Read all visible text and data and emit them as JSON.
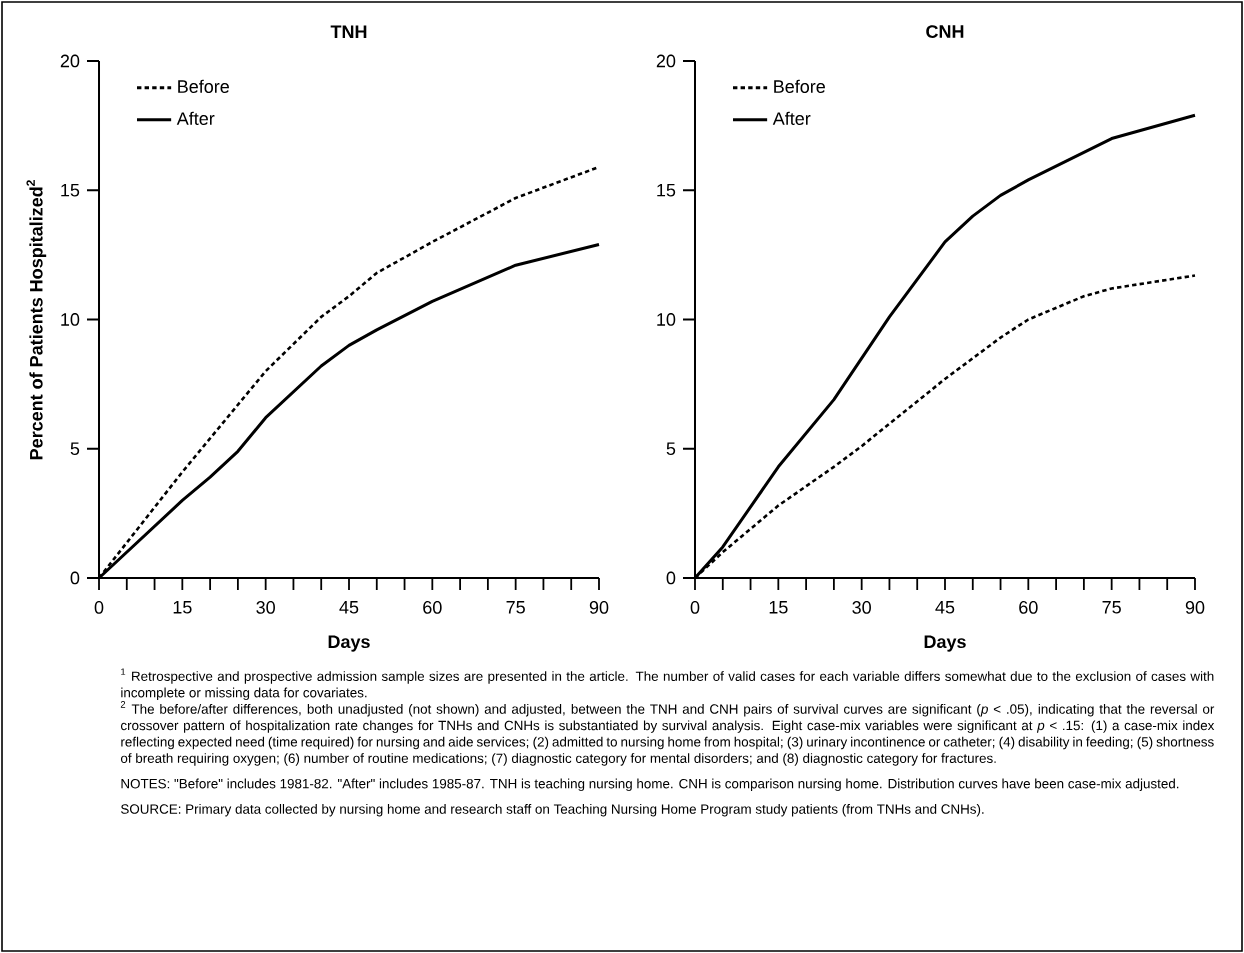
{
  "chart_data": [
    {
      "type": "line",
      "title": "TNH",
      "xlabel": "Days",
      "ylabel": "Percent of Patients Hospitalized$^{2}$",
      "xlim": [
        0,
        90
      ],
      "ylim": [
        0,
        20
      ],
      "xticks": [
        0,
        {
          "value": 5,
          "label": null
        },
        {
          "value": 10,
          "label": null
        },
        15,
        {
          "value": 20,
          "label": null
        },
        {
          "value": 25,
          "label": null
        },
        30,
        {
          "value": 35,
          "label": null
        },
        {
          "value": 40,
          "label": null
        },
        45,
        {
          "value": 50,
          "label": null
        },
        {
          "value": 55,
          "label": null
        },
        60,
        {
          "value": 65,
          "label": null
        },
        {
          "value": 70,
          "label": null
        },
        75,
        {
          "value": 80,
          "label": null
        },
        {
          "value": 85,
          "label": null
        },
        90
      ],
      "yticks": [
        0,
        5,
        10,
        15,
        20
      ],
      "grid": false,
      "legend": "top left",
      "series": [
        {
          "name": "Before",
          "color": "#000000",
          "line_style": "dashed",
          "x": [
            0,
            15,
            30,
            40,
            45,
            50,
            60,
            75,
            90
          ],
          "values": [
            0,
            4.1,
            8.0,
            10.1,
            10.9,
            11.8,
            13.0,
            14.7,
            15.9
          ]
        },
        {
          "name": "After",
          "color": "#000000",
          "line_style": "solid",
          "x": [
            0,
            15,
            20,
            25,
            30,
            40,
            45,
            50,
            60,
            75,
            90
          ],
          "values": [
            0,
            3.0,
            3.9,
            4.9,
            6.2,
            8.2,
            9.0,
            9.6,
            10.7,
            12.1,
            12.9
          ]
        }
      ],
      "annotations": [
        "$^{1}$ Retrospective and prospective admission sample sizes are presented in the article. The number of valid cases for each variable differs somewhat due to the exclusion of cases with incomplete or missing data for covariates.",
        "$^{2}$ The before/after differences, both unadjusted (not shown) and adjusted, between the TNH and CNH pairs of survival curves are significant (*p* < .05), indicating that the reversal or crossover pattern of hospitalization rate changes for TNHs and CNHs is substantiated by survival analysis. Eight case-mix variables were significant at *p* < .15: (1) a case-mix index reflecting expected need (time required) for nursing and aide services; (2) admitted to nursing home from hospital; (3) urinary incontinence or catheter; (4) disability in feeding; (5) shortness of breath requiring oxygen; (6) number of routine medications; (7) diagnostic category for mental disorders; and (8) diagnostic category for fractures.",
        "NOTES: \"Before\" includes 1981-82. \"After\" includes 1985-87. TNH is teaching nursing home. CNH is comparison nursing home. Distribution curves have been case-mix adjusted.",
        "SOURCE: Primary data collected by nursing home and research staff on Teaching Nursing Home Program study patients (from TNHs and CNHs)."
      ]
    },
    {
      "type": "line",
      "title": "CNH",
      "xlabel": "Days",
      "xlim": [
        0,
        90
      ],
      "ylim": [
        0,
        20
      ],
      "xticks": [
        0,
        {
          "value": 5,
          "label": null
        },
        {
          "value": 10,
          "label": null
        },
        15,
        {
          "value": 20,
          "label": null
        },
        {
          "value": 25,
          "label": null
        },
        30,
        {
          "value": 35,
          "label": null
        },
        {
          "value": 40,
          "label": null
        },
        45,
        {
          "value": 50,
          "label": null
        },
        {
          "value": 55,
          "label": null
        },
        60,
        {
          "value": 65,
          "label": null
        },
        {
          "value": 70,
          "label": null
        },
        75,
        {
          "value": 80,
          "label": null
        },
        {
          "value": 85,
          "label": null
        },
        90
      ],
      "yticks": [
        0,
        5,
        10,
        15,
        20
      ],
      "grid": false,
      "legend": "top left",
      "series": [
        {
          "name": "Before",
          "color": "#000000",
          "line_style": "dashed",
          "x": [
            0,
            5,
            15,
            25,
            30,
            45,
            55,
            60,
            70,
            75,
            90
          ],
          "values": [
            0,
            1.0,
            2.8,
            4.3,
            5.1,
            7.7,
            9.3,
            10.0,
            10.9,
            11.2,
            11.7
          ]
        },
        {
          "name": "After",
          "color": "#000000",
          "line_style": "solid",
          "x": [
            0,
            5,
            15,
            25,
            30,
            35,
            45,
            50,
            55,
            60,
            75,
            90
          ],
          "values": [
            0,
            1.2,
            4.3,
            6.9,
            8.5,
            10.1,
            13.0,
            14.0,
            14.8,
            15.4,
            17.0,
            17.9
          ]
        }
      ]
    }
  ]
}
